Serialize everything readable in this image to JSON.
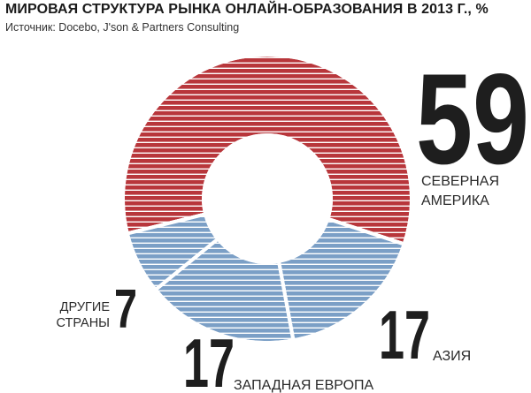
{
  "title": "МИРОВАЯ СТРУКТУРА РЫНКА ОНЛАЙН-ОБРАЗОВАНИЯ В 2013 Г., %",
  "source": "Источник: Docebo, J'son & Partners Consulting",
  "colors": {
    "north_america": "#b8363b",
    "others": "#7b9fc6",
    "stripe": "#ffffff",
    "text": "#1e1e1e"
  },
  "chart_data": {
    "type": "pie",
    "donut": true,
    "title": "МИРОВАЯ СТРУКТУРА РЫНКА ОНЛАЙН-ОБРАЗОВАНИЯ В 2013 Г., %",
    "unit": "%",
    "slices": [
      {
        "label_lines": [
          "СЕВЕРНАЯ",
          "АМЕРИКА"
        ],
        "value": 59,
        "display": "59",
        "color": "#b8363b"
      },
      {
        "label_lines": [
          "АЗИЯ"
        ],
        "value": 17,
        "display": "17",
        "color": "#7b9fc6"
      },
      {
        "label_lines": [
          "ЗАПАДНАЯ ЕВРОПА"
        ],
        "value": 17,
        "display": "17",
        "color": "#7b9fc6"
      },
      {
        "label_lines": [
          "ДРУГИЕ",
          "СТРАНЫ"
        ],
        "value": 7,
        "display": "7",
        "color": "#7b9fc6"
      }
    ],
    "legend": "none",
    "grid": false
  }
}
